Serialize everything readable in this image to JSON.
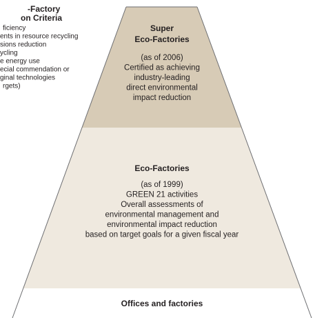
{
  "criteria": {
    "title": [
      "-Factory",
      "on Criteria"
    ],
    "items": [
      "ficiency",
      "ents in resource recycling",
      "sions reduction",
      "ycling",
      "e energy use",
      "ecial commendation or",
      "ginal technologies",
      "rgets)"
    ]
  },
  "tiers": [
    {
      "title": [
        "Super",
        "Eco-Factories"
      ],
      "lines": [
        "(as of 2006)",
        "Certified as achieving",
        "industry-leading",
        "direct environmental",
        "impact reduction"
      ]
    },
    {
      "title": [
        "Eco-Factories"
      ],
      "lines": [
        "(as of 1999)",
        "GREEN 21 activities",
        "Overall assessments of",
        "environmental management and",
        "environmental impact reduction",
        "based on target goals for a given fiscal year"
      ]
    },
    {
      "title": [
        "Offices and factories"
      ],
      "lines": []
    }
  ]
}
